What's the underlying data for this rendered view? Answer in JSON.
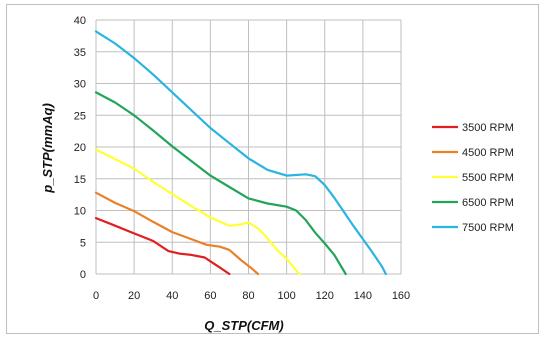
{
  "chart_data": {
    "type": "line",
    "xlabel": "Q_STP(CFM)",
    "ylabel": "p_STP(mmAq)",
    "xlim": [
      0,
      160
    ],
    "ylim": [
      0,
      40
    ],
    "xticks": [
      0,
      20,
      40,
      60,
      80,
      100,
      120,
      140,
      160
    ],
    "yticks": [
      0,
      5,
      10,
      15,
      20,
      25,
      30,
      35,
      40
    ],
    "grid": true,
    "legend_position": "right",
    "series": [
      {
        "name": "3500 RPM",
        "color": "#e02020",
        "points": [
          [
            0,
            8.8
          ],
          [
            10,
            7.6
          ],
          [
            20,
            6.4
          ],
          [
            30,
            5.2
          ],
          [
            38,
            3.6
          ],
          [
            44,
            3.2
          ],
          [
            50,
            3.0
          ],
          [
            57,
            2.6
          ],
          [
            60,
            2.0
          ],
          [
            65,
            1.0
          ],
          [
            70,
            0
          ]
        ]
      },
      {
        "name": "4500 RPM",
        "color": "#e8812a",
        "points": [
          [
            0,
            12.8
          ],
          [
            10,
            11.2
          ],
          [
            20,
            9.9
          ],
          [
            30,
            8.2
          ],
          [
            40,
            6.6
          ],
          [
            50,
            5.5
          ],
          [
            58,
            4.6
          ],
          [
            65,
            4.3
          ],
          [
            70,
            3.8
          ],
          [
            76,
            2.2
          ],
          [
            82,
            0.8
          ],
          [
            85,
            0
          ]
        ]
      },
      {
        "name": "5500 RPM",
        "color": "#ffff33",
        "points": [
          [
            0,
            19.6
          ],
          [
            10,
            18.1
          ],
          [
            20,
            16.6
          ],
          [
            30,
            14.5
          ],
          [
            40,
            12.6
          ],
          [
            50,
            10.7
          ],
          [
            60,
            8.9
          ],
          [
            70,
            7.6
          ],
          [
            76,
            7.8
          ],
          [
            80,
            8.1
          ],
          [
            85,
            7.2
          ],
          [
            90,
            5.6
          ],
          [
            95,
            3.8
          ],
          [
            100,
            2.4
          ],
          [
            106,
            0.2
          ],
          [
            107,
            0
          ]
        ]
      },
      {
        "name": "6500 RPM",
        "color": "#22a559",
        "points": [
          [
            0,
            28.6
          ],
          [
            10,
            27.0
          ],
          [
            20,
            25.0
          ],
          [
            30,
            22.6
          ],
          [
            40,
            20.1
          ],
          [
            50,
            17.8
          ],
          [
            60,
            15.5
          ],
          [
            70,
            13.7
          ],
          [
            80,
            11.9
          ],
          [
            90,
            11.1
          ],
          [
            100,
            10.6
          ],
          [
            105,
            10.0
          ],
          [
            110,
            8.5
          ],
          [
            115,
            6.5
          ],
          [
            120,
            4.8
          ],
          [
            125,
            3.0
          ],
          [
            131,
            0
          ]
        ]
      },
      {
        "name": "7500 RPM",
        "color": "#2ab4e0",
        "points": [
          [
            0,
            38.2
          ],
          [
            10,
            36.3
          ],
          [
            20,
            34.0
          ],
          [
            30,
            31.4
          ],
          [
            40,
            28.6
          ],
          [
            50,
            25.8
          ],
          [
            60,
            23.0
          ],
          [
            70,
            20.6
          ],
          [
            80,
            18.2
          ],
          [
            90,
            16.4
          ],
          [
            100,
            15.5
          ],
          [
            110,
            15.7
          ],
          [
            115,
            15.4
          ],
          [
            120,
            14.0
          ],
          [
            125,
            12.0
          ],
          [
            130,
            9.8
          ],
          [
            135,
            7.6
          ],
          [
            140,
            5.5
          ],
          [
            145,
            3.4
          ],
          [
            150,
            1.2
          ],
          [
            152,
            0
          ]
        ]
      }
    ]
  }
}
